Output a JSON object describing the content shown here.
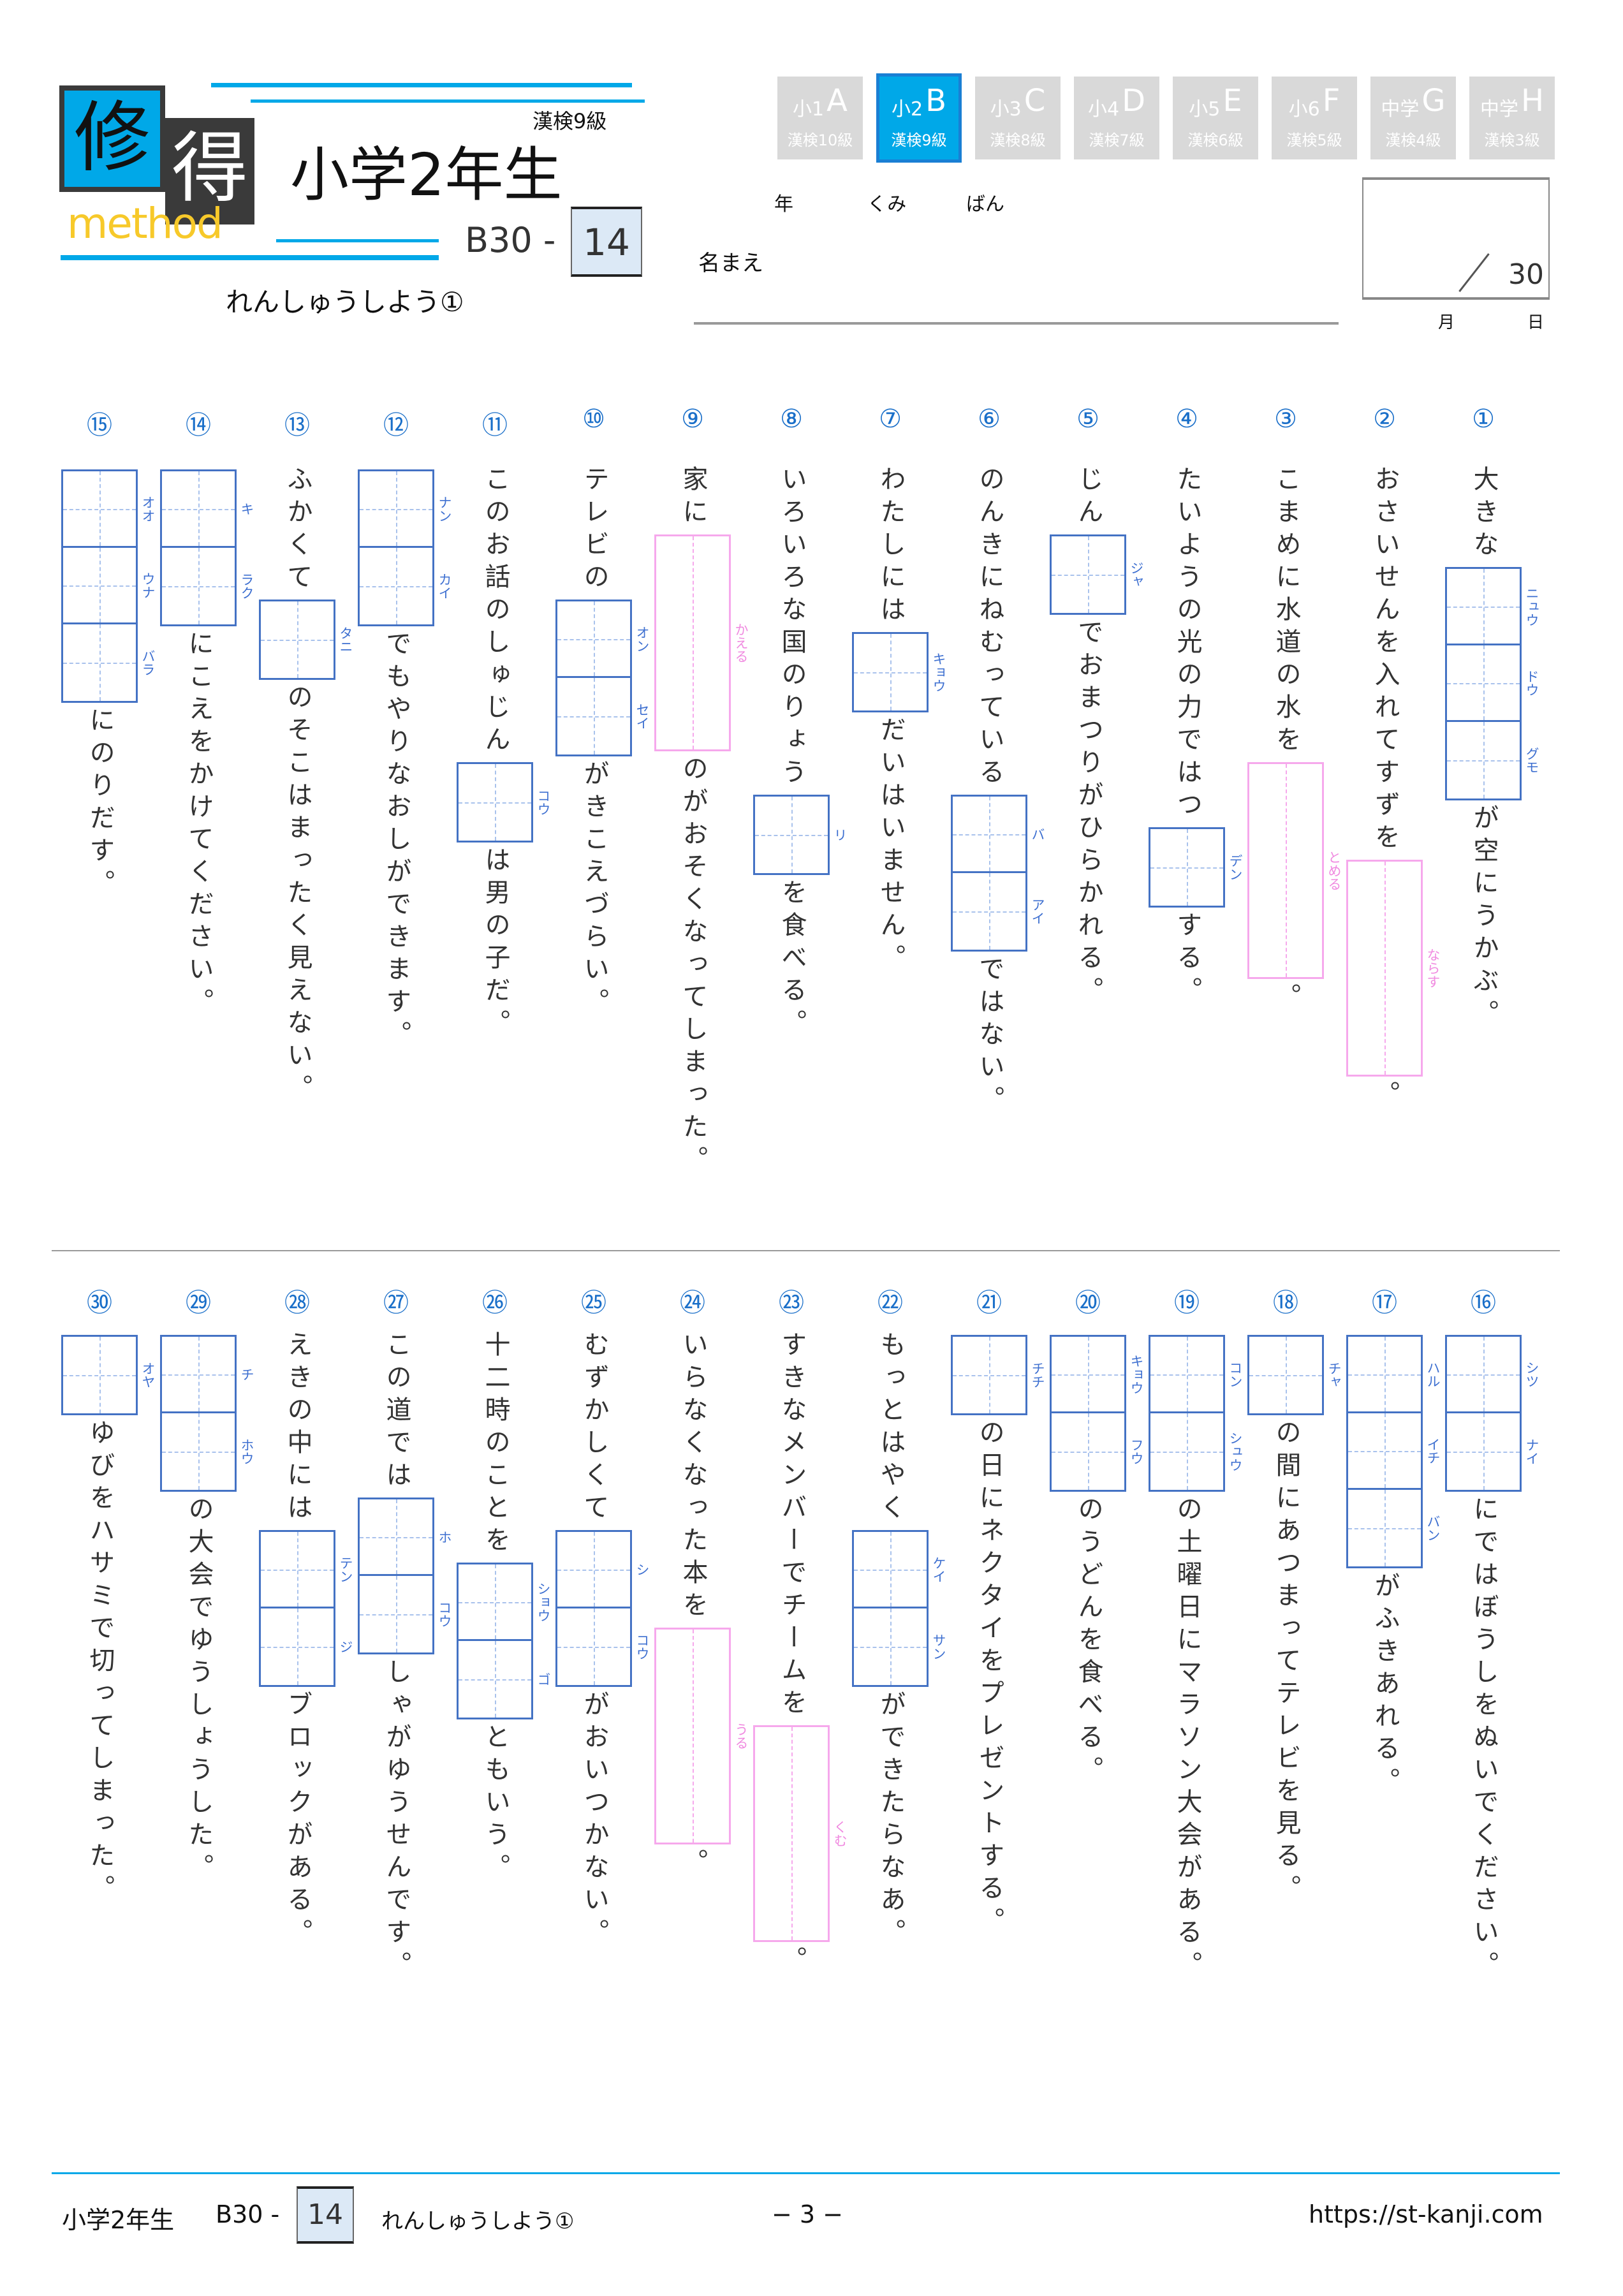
{
  "header": {
    "logo": {
      "char1": "修",
      "char2": "得",
      "word": "method"
    },
    "grade_title": "小学2年生",
    "kanken": "漢検9級",
    "series": "B30 -",
    "number": "14",
    "subtitle": "れんしゅうしよう①",
    "tabs": [
      {
        "grade": "小1",
        "letter": "A",
        "kanken": "漢検10級",
        "active": false
      },
      {
        "grade": "小2",
        "letter": "B",
        "kanken": "漢検9級",
        "active": true
      },
      {
        "grade": "小3",
        "letter": "C",
        "kanken": "漢検8級",
        "active": false
      },
      {
        "grade": "小4",
        "letter": "D",
        "kanken": "漢検7級",
        "active": false
      },
      {
        "grade": "小5",
        "letter": "E",
        "kanken": "漢検6級",
        "active": false
      },
      {
        "grade": "小6",
        "letter": "F",
        "kanken": "漢検5級",
        "active": false
      },
      {
        "grade": "中学",
        "letter": "G",
        "kanken": "漢検4級",
        "active": false
      },
      {
        "grade": "中学",
        "letter": "H",
        "kanken": "漢検3級",
        "active": false
      }
    ],
    "labels": {
      "nen": "年",
      "kumi": "くみ",
      "ban": "ばん",
      "name": "名まえ",
      "month": "月",
      "day": "日"
    },
    "score_total": "30"
  },
  "colors": {
    "accent": "#00a8e8",
    "box": "#4472c4",
    "okurigana_box": "#f6a8ec",
    "number": "#1a6fc9"
  },
  "questions": [
    {
      "num": "①",
      "parts": [
        {
          "t": "text",
          "v": "大きな"
        },
        {
          "t": "box",
          "r": [
            "ニュウ",
            "ドウ",
            "グモ"
          ]
        },
        {
          "t": "text",
          "v": "が空にうかぶ。"
        }
      ]
    },
    {
      "num": "②",
      "parts": [
        {
          "t": "text",
          "v": "おさいせんを入れてすずを"
        },
        {
          "t": "ok",
          "r": "ならす"
        },
        {
          "t": "text",
          "v": "。"
        }
      ]
    },
    {
      "num": "③",
      "parts": [
        {
          "t": "text",
          "v": "こまめに水道の水を"
        },
        {
          "t": "ok",
          "r": "とめる"
        },
        {
          "t": "text",
          "v": "。"
        }
      ]
    },
    {
      "num": "④",
      "parts": [
        {
          "t": "text",
          "v": "たいようの光の力ではつ"
        },
        {
          "t": "box",
          "r": [
            "デン"
          ]
        },
        {
          "t": "text",
          "v": "する。"
        }
      ]
    },
    {
      "num": "⑤",
      "parts": [
        {
          "t": "text",
          "v": "じん"
        },
        {
          "t": "box",
          "r": [
            "ジャ"
          ]
        },
        {
          "t": "text",
          "v": "でおまつりがひらかれる。"
        }
      ]
    },
    {
      "num": "⑥",
      "parts": [
        {
          "t": "text",
          "v": "のんきにねむっている"
        },
        {
          "t": "box",
          "r": [
            "バ",
            "アイ"
          ]
        },
        {
          "t": "text",
          "v": "ではない。"
        }
      ]
    },
    {
      "num": "⑦",
      "parts": [
        {
          "t": "text",
          "v": "わたしには"
        },
        {
          "t": "box",
          "r": [
            "キョウ"
          ]
        },
        {
          "t": "text",
          "v": "だいはいません。"
        }
      ]
    },
    {
      "num": "⑧",
      "parts": [
        {
          "t": "text",
          "v": "いろいろな国のりょう"
        },
        {
          "t": "box",
          "r": [
            "リ"
          ]
        },
        {
          "t": "text",
          "v": "を食べる。"
        }
      ]
    },
    {
      "num": "⑨",
      "parts": [
        {
          "t": "text",
          "v": "家に"
        },
        {
          "t": "ok",
          "r": "かえる"
        },
        {
          "t": "text",
          "v": "のがおそくなってしまった。"
        }
      ]
    },
    {
      "num": "⑩",
      "parts": [
        {
          "t": "text",
          "v": "テレビの"
        },
        {
          "t": "box",
          "r": [
            "オン",
            "セイ"
          ]
        },
        {
          "t": "text",
          "v": "がきこえづらい。"
        }
      ]
    },
    {
      "num": "⑪",
      "parts": [
        {
          "t": "text",
          "v": "このお話のしゅじん"
        },
        {
          "t": "box",
          "r": [
            "コウ"
          ]
        },
        {
          "t": "text",
          "v": "は男の子だ。"
        }
      ]
    },
    {
      "num": "⑫",
      "parts": [
        {
          "t": "box",
          "r": [
            "ナン",
            "カイ"
          ]
        },
        {
          "t": "text",
          "v": "でもやりなおしができます。"
        }
      ]
    },
    {
      "num": "⑬",
      "parts": [
        {
          "t": "text",
          "v": "ふかくて"
        },
        {
          "t": "box",
          "r": [
            "タニ"
          ]
        },
        {
          "t": "text",
          "v": "のそこはまったく見えない。"
        }
      ]
    },
    {
      "num": "⑭",
      "parts": [
        {
          "t": "box",
          "r": [
            "キ",
            "ラク"
          ]
        },
        {
          "t": "text",
          "v": "にこえをかけてください。"
        }
      ]
    },
    {
      "num": "⑮",
      "parts": [
        {
          "t": "box",
          "r": [
            "オオ",
            "ウナ",
            "バラ"
          ]
        },
        {
          "t": "text",
          "v": "にのりだす。"
        }
      ]
    },
    {
      "num": "⑯",
      "parts": [
        {
          "t": "box",
          "r": [
            "シツ",
            "ナイ"
          ]
        },
        {
          "t": "text",
          "v": "にではぼうしをぬいでください。"
        }
      ]
    },
    {
      "num": "⑰",
      "parts": [
        {
          "t": "box",
          "r": [
            "ハル",
            "イチ",
            "バン"
          ]
        },
        {
          "t": "text",
          "v": "がふきあれる。"
        }
      ]
    },
    {
      "num": "⑱",
      "parts": [
        {
          "t": "box",
          "r": [
            "チャ"
          ]
        },
        {
          "t": "text",
          "v": "の間にあつまってテレビを見る。"
        }
      ]
    },
    {
      "num": "⑲",
      "parts": [
        {
          "t": "box",
          "r": [
            "コン",
            "シュウ"
          ]
        },
        {
          "t": "text",
          "v": "の土曜日にマラソン大会がある。"
        }
      ]
    },
    {
      "num": "⑳",
      "parts": [
        {
          "t": "box",
          "r": [
            "キョウ",
            "フウ"
          ]
        },
        {
          "t": "text",
          "v": "のうどんを食べる。"
        }
      ]
    },
    {
      "num": "㉑",
      "parts": [
        {
          "t": "box",
          "r": [
            "チチ"
          ]
        },
        {
          "t": "text",
          "v": "の日にネクタイをプレゼントする。"
        }
      ]
    },
    {
      "num": "㉒",
      "parts": [
        {
          "t": "text",
          "v": "もっとはやく"
        },
        {
          "t": "box",
          "r": [
            "ケイ",
            "サン"
          ]
        },
        {
          "t": "text",
          "v": "ができたらなあ。"
        }
      ]
    },
    {
      "num": "㉓",
      "parts": [
        {
          "t": "text",
          "v": "すきなメンバーでチームを"
        },
        {
          "t": "ok",
          "r": "くむ"
        },
        {
          "t": "text",
          "v": "。"
        }
      ]
    },
    {
      "num": "㉔",
      "parts": [
        {
          "t": "text",
          "v": "いらなくなった本を"
        },
        {
          "t": "ok",
          "r": "うる"
        },
        {
          "t": "text",
          "v": "。"
        }
      ]
    },
    {
      "num": "㉕",
      "parts": [
        {
          "t": "text",
          "v": "むずかしくて"
        },
        {
          "t": "box",
          "r": [
            "シ",
            "コウ"
          ]
        },
        {
          "t": "text",
          "v": "がおいつかない。"
        }
      ]
    },
    {
      "num": "㉖",
      "parts": [
        {
          "t": "text",
          "v": "十二時のことを"
        },
        {
          "t": "box",
          "r": [
            "ショウ",
            "ゴ"
          ]
        },
        {
          "t": "text",
          "v": "ともいう。"
        }
      ]
    },
    {
      "num": "㉗",
      "parts": [
        {
          "t": "text",
          "v": "この道では"
        },
        {
          "t": "box",
          "r": [
            "ホ",
            "コウ"
          ]
        },
        {
          "t": "text",
          "v": "しゃがゆうせんです。"
        }
      ]
    },
    {
      "num": "㉘",
      "parts": [
        {
          "t": "text",
          "v": "えきの中には"
        },
        {
          "t": "box",
          "r": [
            "テン",
            "ジ"
          ]
        },
        {
          "t": "text",
          "v": "ブロックがある。"
        }
      ]
    },
    {
      "num": "㉙",
      "parts": [
        {
          "t": "box",
          "r": [
            "チ",
            "ホウ"
          ]
        },
        {
          "t": "text",
          "v": "の大会でゆうしょうした。"
        }
      ]
    },
    {
      "num": "㉚",
      "parts": [
        {
          "t": "box",
          "r": [
            "オヤ"
          ]
        },
        {
          "t": "text",
          "v": "ゆびをハサミで切ってしまった。"
        }
      ]
    }
  ],
  "footer": {
    "grade": "小学2年生",
    "series": "B30 -",
    "number": "14",
    "subtitle": "れんしゅうしよう①",
    "page": "− 3 −",
    "url": "https://st-kanji.com"
  }
}
